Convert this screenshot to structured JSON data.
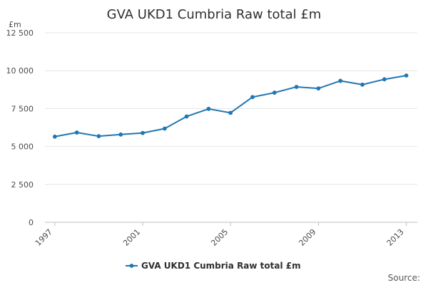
{
  "chart_data": {
    "type": "line",
    "title": "GVA UKD1 Cumbria Raw total £m",
    "ylabel": "£m",
    "xlabel": "",
    "source_label": "Source:",
    "ylim": [
      0,
      12500
    ],
    "yticks": [
      "0",
      "2 500",
      "5 000",
      "7 500",
      "10 000",
      "12 500"
    ],
    "ytick_values": [
      0,
      2500,
      5000,
      7500,
      10000,
      12500
    ],
    "xticks": [
      "1997",
      "2001",
      "2005",
      "2009",
      "2013"
    ],
    "xtick_values": [
      1997,
      2001,
      2005,
      2009,
      2013
    ],
    "grid": true,
    "legend_position": "bottom",
    "series": [
      {
        "name": "GVA UKD1 Cumbria Raw total £m",
        "color": "#1f77b4",
        "x": [
          1997,
          1998,
          1999,
          2000,
          2001,
          2002,
          2003,
          2004,
          2005,
          2006,
          2007,
          2008,
          2009,
          2010,
          2011,
          2012,
          2013
        ],
        "y": [
          5650,
          5920,
          5680,
          5790,
          5890,
          6180,
          6980,
          7480,
          7220,
          8260,
          8550,
          8930,
          8830,
          9330,
          9080,
          9430,
          9680
        ]
      }
    ]
  }
}
